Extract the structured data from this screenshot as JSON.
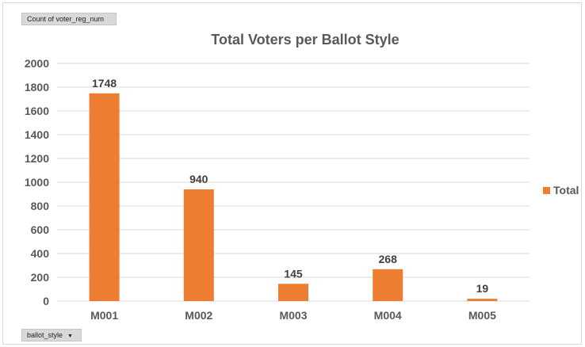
{
  "pivot": {
    "value_field": "Count of voter_reg_num",
    "axis_field": "ballot_style",
    "dropdown_icon": "▼"
  },
  "colors": {
    "bar": "#ed7d31",
    "grid": "#d9d9d9",
    "text": "#595959",
    "label": "#404040"
  },
  "chart_data": {
    "type": "bar",
    "title": "Total Voters per Ballot Style",
    "categories": [
      "M001",
      "M002",
      "M003",
      "M004",
      "M005"
    ],
    "series": [
      {
        "name": "Total",
        "values": [
          1748,
          940,
          145,
          268,
          19
        ]
      }
    ],
    "ylim": [
      0,
      2000
    ],
    "yticks": [
      0,
      200,
      400,
      600,
      800,
      1000,
      1200,
      1400,
      1600,
      1800,
      2000
    ],
    "grid": true,
    "legend": "right",
    "data_labels": true
  }
}
